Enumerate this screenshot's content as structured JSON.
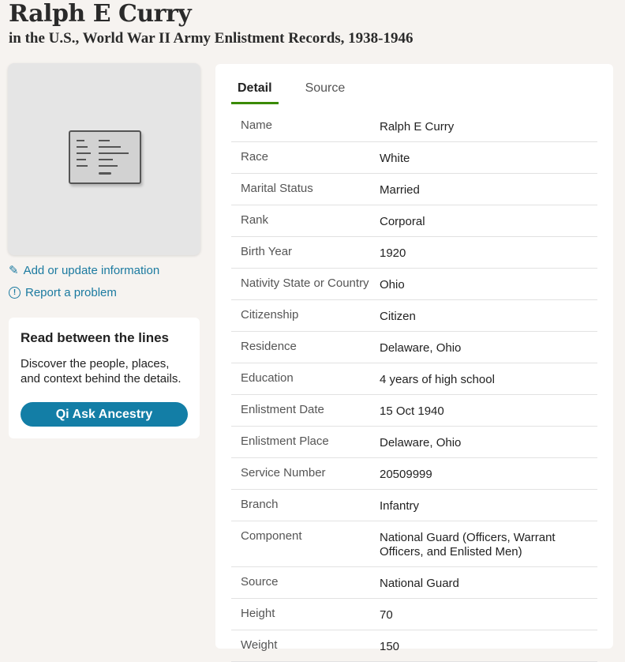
{
  "header": {
    "title": "Ralph E Curry",
    "subtitle": "in the U.S., World War II Army Enlistment Records, 1938-1946"
  },
  "sidebar": {
    "add_link": "Add or update information",
    "report_link": "Report a problem",
    "promo": {
      "title": "Read between the lines",
      "text": "Discover the people, places, and context behind the details.",
      "button": "Ask Ancestry",
      "button_icon": "Qi"
    }
  },
  "tabs": [
    {
      "label": "Detail",
      "active": true
    },
    {
      "label": "Source",
      "active": false
    }
  ],
  "accent": "#3a8a00",
  "link_color": "#1b7aa0",
  "rows": [
    {
      "k": "Name",
      "v": "Ralph E Curry"
    },
    {
      "k": "Race",
      "v": "White"
    },
    {
      "k": "Marital Status",
      "v": "Married"
    },
    {
      "k": "Rank",
      "v": "Corporal"
    },
    {
      "k": "Birth Year",
      "v": "1920"
    },
    {
      "k": "Nativity State or Country",
      "v": "Ohio"
    },
    {
      "k": "Citizenship",
      "v": "Citizen"
    },
    {
      "k": "Residence",
      "v": "Delaware, Ohio"
    },
    {
      "k": "Education",
      "v": "4 years of high school"
    },
    {
      "k": "Enlistment Date",
      "v": "15 Oct 1940"
    },
    {
      "k": "Enlistment Place",
      "v": "Delaware, Ohio"
    },
    {
      "k": "Service Number",
      "v": "20509999"
    },
    {
      "k": "Branch",
      "v": "Infantry"
    },
    {
      "k": "Component",
      "v": "National Guard (Officers, Warrant Officers, and Enlisted Men)"
    },
    {
      "k": "Source",
      "v": "National Guard"
    },
    {
      "k": "Height",
      "v": "70"
    },
    {
      "k": "Weight",
      "v": "150"
    }
  ]
}
